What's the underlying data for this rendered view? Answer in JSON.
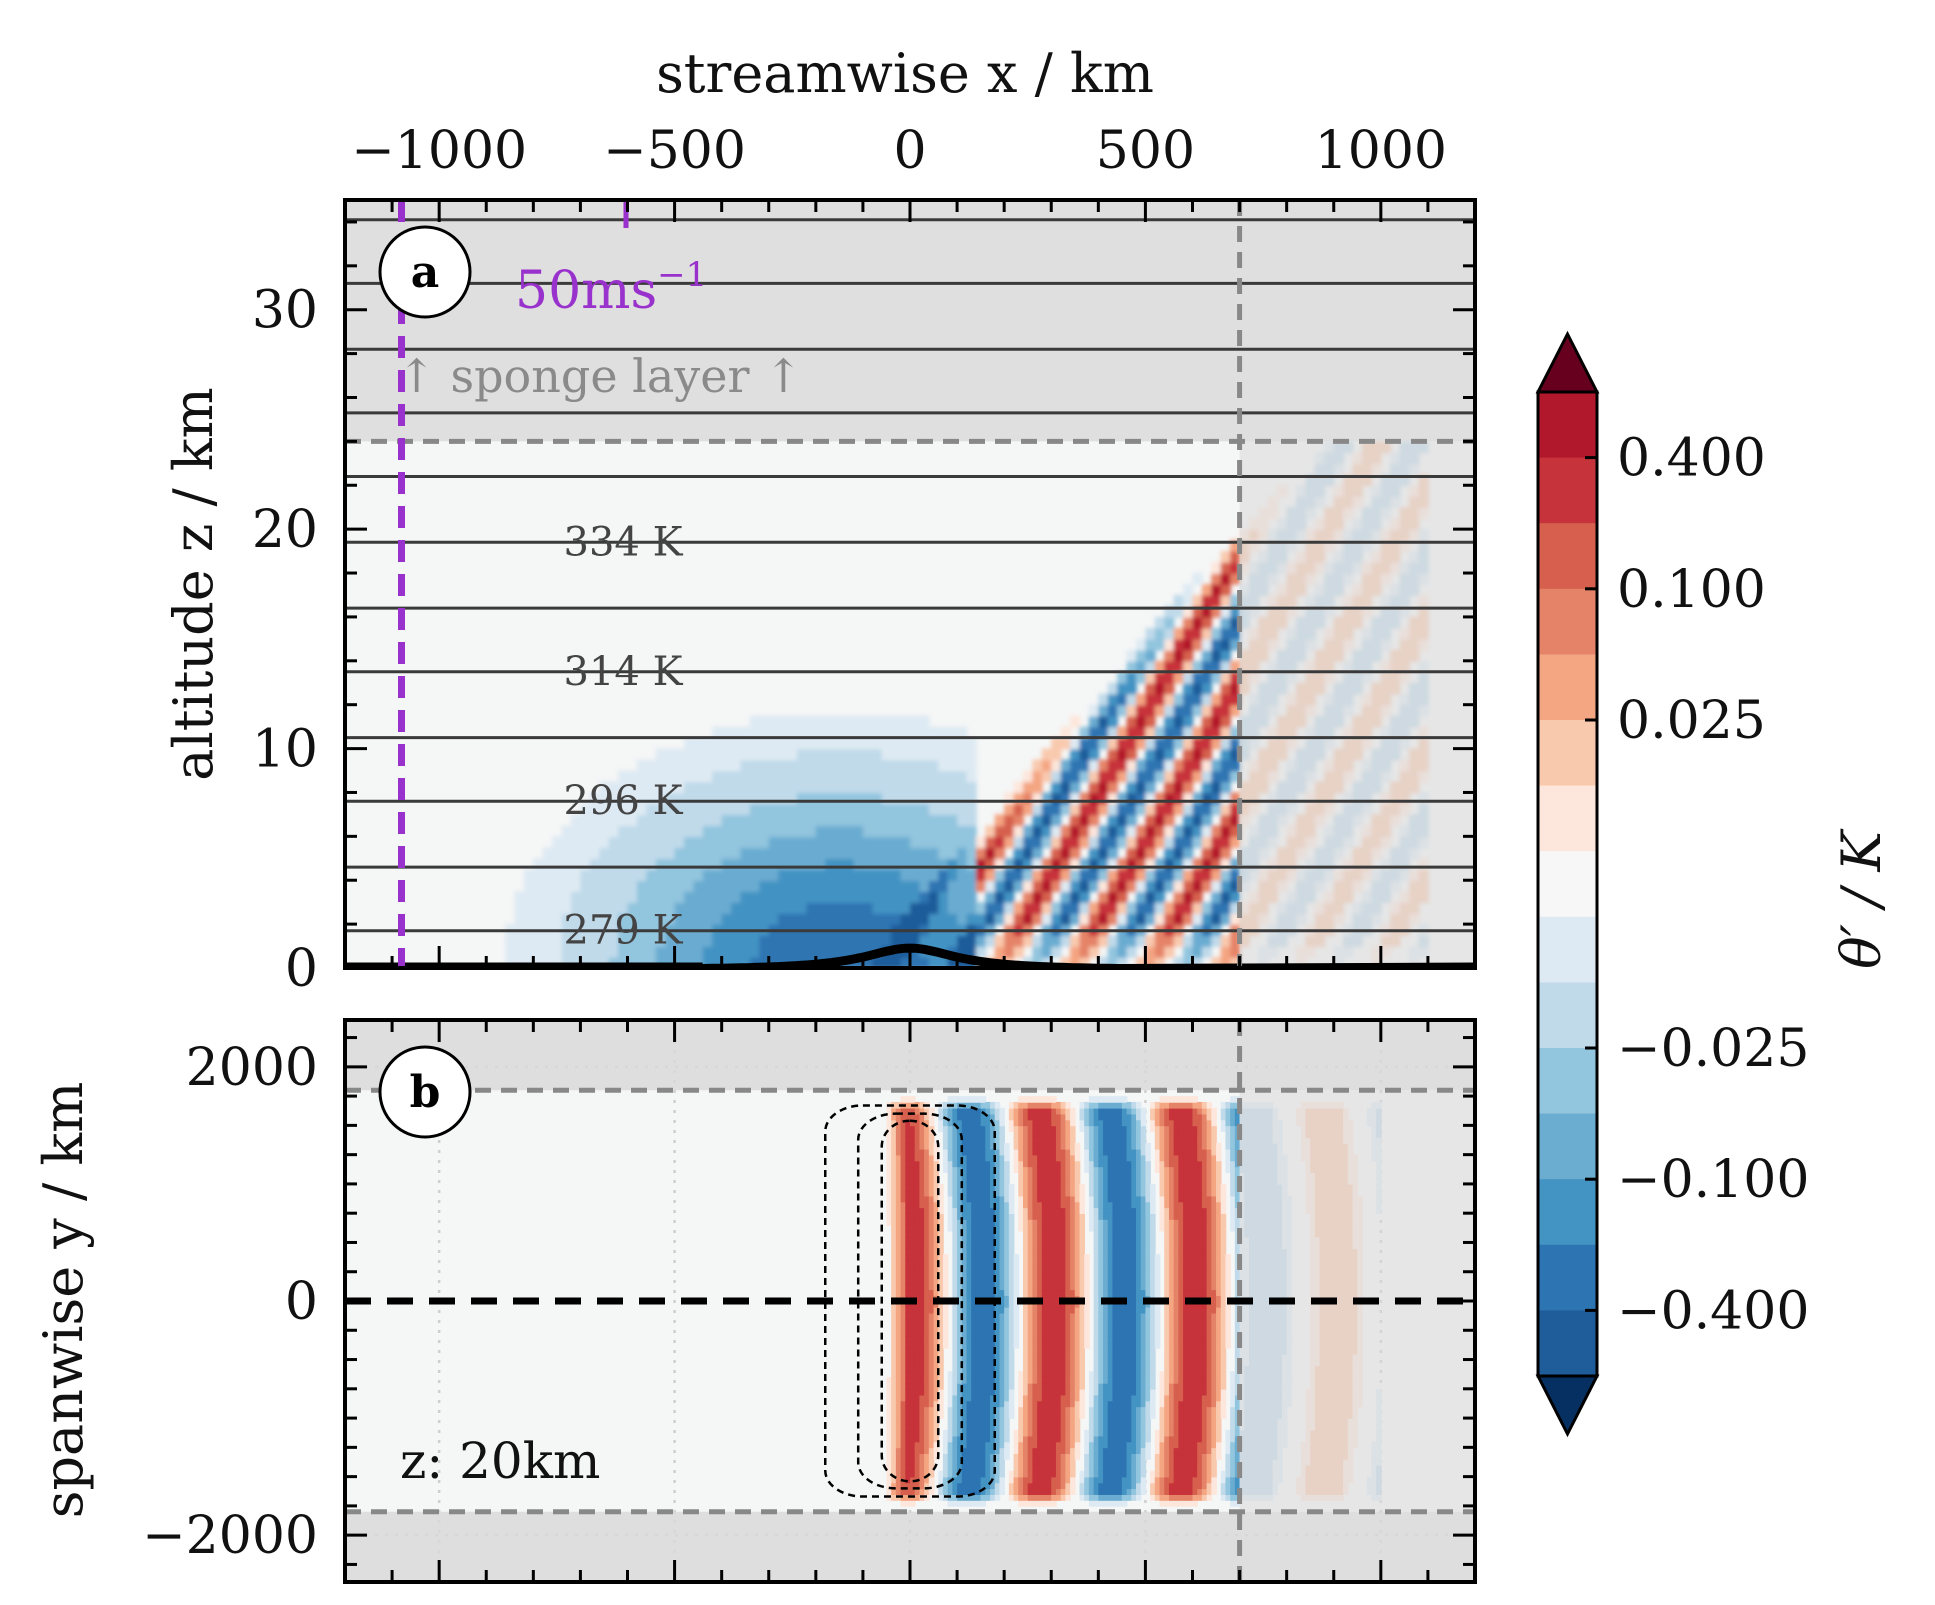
{
  "chart_data": [
    {
      "panel": "a",
      "type": "heatmap",
      "xlabel": "streamwise x / km",
      "ylabel": "altitude z / km",
      "xlim": [
        -1200,
        1200
      ],
      "ylim": [
        0,
        35
      ],
      "x_ticks": [
        "−1000",
        "−500",
        "0",
        "500",
        "1000"
      ],
      "x_tick_values": [
        -1000,
        -500,
        0,
        500,
        1000
      ],
      "y_ticks": [
        "0",
        "10",
        "20",
        "30"
      ],
      "y_tick_values": [
        0,
        10,
        20,
        30
      ],
      "isentropes_z_km": [
        1.7,
        4.6,
        7.6,
        10.5,
        13.5,
        16.4,
        19.4,
        22.4,
        25.3,
        28.2,
        31.2,
        34.1
      ],
      "isentrope_labels": [
        {
          "text": "279 K",
          "z": 1.7
        },
        {
          "text": "296 K",
          "z": 7.6
        },
        {
          "text": "314 K",
          "z": 13.5
        },
        {
          "text": "334 K",
          "z": 19.4
        }
      ],
      "sponge_layer_z_km": 24,
      "sponge_label": "↑ sponge layer ↑",
      "right_boundary_x_km": 700,
      "wind_profile_x_km": -1080,
      "wind_scale_label": "50ms",
      "wind_scale_exponent": "−1",
      "wind_scale_color": "#9932cc",
      "mountain": {
        "center_x_km": 0,
        "height_km": 1,
        "half_width_km": 120
      }
    },
    {
      "panel": "b",
      "type": "heatmap",
      "ylabel": "spanwise y / km",
      "xlim": [
        -1200,
        1200
      ],
      "ylim": [
        -2400,
        2400
      ],
      "y_ticks": [
        "−2000",
        "0",
        "2000"
      ],
      "y_tick_values": [
        -2000,
        0,
        2000
      ],
      "sponge_y_km": [
        -1800,
        1800
      ],
      "right_boundary_x_km": 700,
      "level_label": "z: 20km"
    }
  ],
  "colorbar": {
    "label": "θ′ / K",
    "tick_labels": [
      "0.400",
      "0.100",
      "0.025",
      "−0.025",
      "−0.100",
      "−0.400"
    ],
    "colors_top_to_bottom": [
      "#b2182b",
      "#c7333a",
      "#d6604d",
      "#e58368",
      "#f4a582",
      "#f9c9ae",
      "#fde6db",
      "#f7f7f7",
      "#deeaf3",
      "#c0daea",
      "#92c5de",
      "#6bacd1",
      "#4393c3",
      "#2d75b2",
      "#1e5c9a"
    ],
    "over_color": "#67001f",
    "under_color": "#053061"
  }
}
